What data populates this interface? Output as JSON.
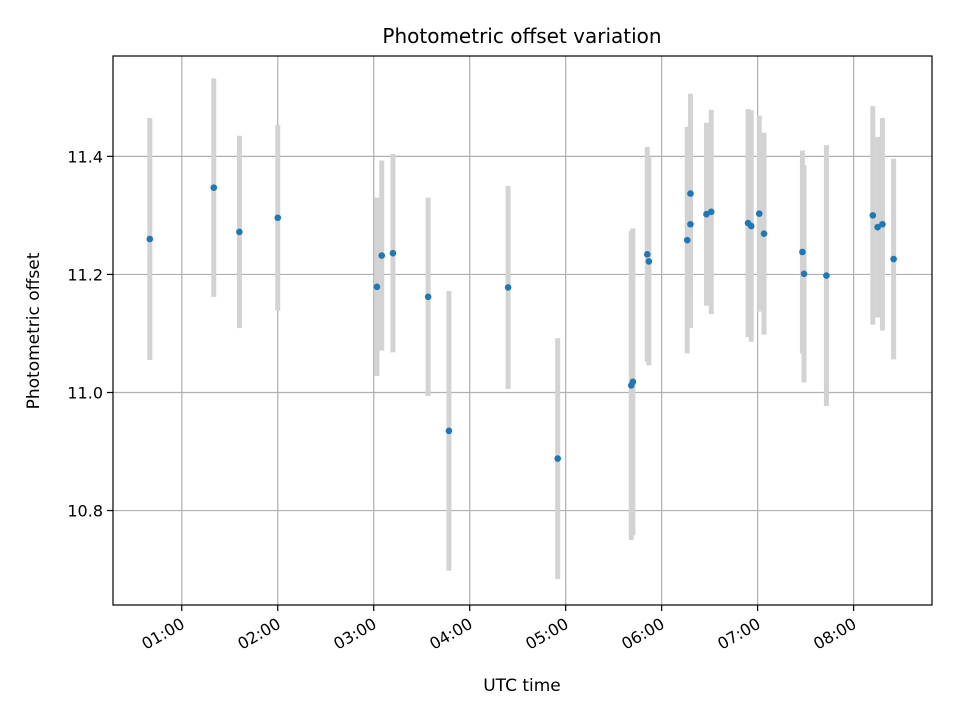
{
  "chart_data": {
    "type": "scatter",
    "title": "Photometric offset variation",
    "xlabel": "UTC time",
    "ylabel": "Photometric offset",
    "x_unit": "UTC hh:mm",
    "xlim": [
      "00:17",
      "08:49"
    ],
    "ylim": [
      10.64,
      11.57
    ],
    "grid": true,
    "x_ticks": [
      "01:00",
      "02:00",
      "03:00",
      "04:00",
      "05:00",
      "06:00",
      "07:00",
      "08:00"
    ],
    "y_ticks": [
      "10.8",
      "11.0",
      "11.2",
      "11.4"
    ],
    "colors": {
      "point": "#1f77b4",
      "error_bar": "#d3d3d3",
      "grid": "#b0b0b0"
    },
    "points": [
      {
        "x": "00:40",
        "y": 11.26,
        "err": 0.205
      },
      {
        "x": "01:20",
        "y": 11.347,
        "err": 0.185
      },
      {
        "x": "01:36",
        "y": 11.272,
        "err": 0.163
      },
      {
        "x": "02:00",
        "y": 11.296,
        "err": 0.157
      },
      {
        "x": "03:02",
        "y": 11.179,
        "err": 0.151
      },
      {
        "x": "03:05",
        "y": 11.232,
        "err": 0.161
      },
      {
        "x": "03:12",
        "y": 11.236,
        "err": 0.168
      },
      {
        "x": "03:34",
        "y": 11.162,
        "err": 0.168
      },
      {
        "x": "03:47",
        "y": 10.935,
        "err": 0.237
      },
      {
        "x": "04:24",
        "y": 11.178,
        "err": 0.172
      },
      {
        "x": "04:55",
        "y": 10.888,
        "err": 0.204
      },
      {
        "x": "05:41",
        "y": 11.012,
        "err": 0.262
      },
      {
        "x": "05:42",
        "y": 11.018,
        "err": 0.26
      },
      {
        "x": "05:51",
        "y": 11.234,
        "err": 0.182
      },
      {
        "x": "05:52",
        "y": 11.222,
        "err": 0.176
      },
      {
        "x": "06:16",
        "y": 11.258,
        "err": 0.192
      },
      {
        "x": "06:18",
        "y": 11.337,
        "err": 0.169
      },
      {
        "x": "06:18",
        "y": 11.285,
        "err": 0.176
      },
      {
        "x": "06:28",
        "y": 11.302,
        "err": 0.155
      },
      {
        "x": "06:31",
        "y": 11.306,
        "err": 0.173
      },
      {
        "x": "06:54",
        "y": 11.287,
        "err": 0.193
      },
      {
        "x": "06:56",
        "y": 11.282,
        "err": 0.196
      },
      {
        "x": "07:01",
        "y": 11.303,
        "err": 0.166
      },
      {
        "x": "07:04",
        "y": 11.269,
        "err": 0.171
      },
      {
        "x": "07:28",
        "y": 11.238,
        "err": 0.172
      },
      {
        "x": "07:29",
        "y": 11.201,
        "err": 0.184
      },
      {
        "x": "07:43",
        "y": 11.198,
        "err": 0.221
      },
      {
        "x": "08:12",
        "y": 11.3,
        "err": 0.185
      },
      {
        "x": "08:15",
        "y": 11.28,
        "err": 0.153
      },
      {
        "x": "08:18",
        "y": 11.285,
        "err": 0.18
      },
      {
        "x": "08:25",
        "y": 11.226,
        "err": 0.17
      }
    ]
  }
}
